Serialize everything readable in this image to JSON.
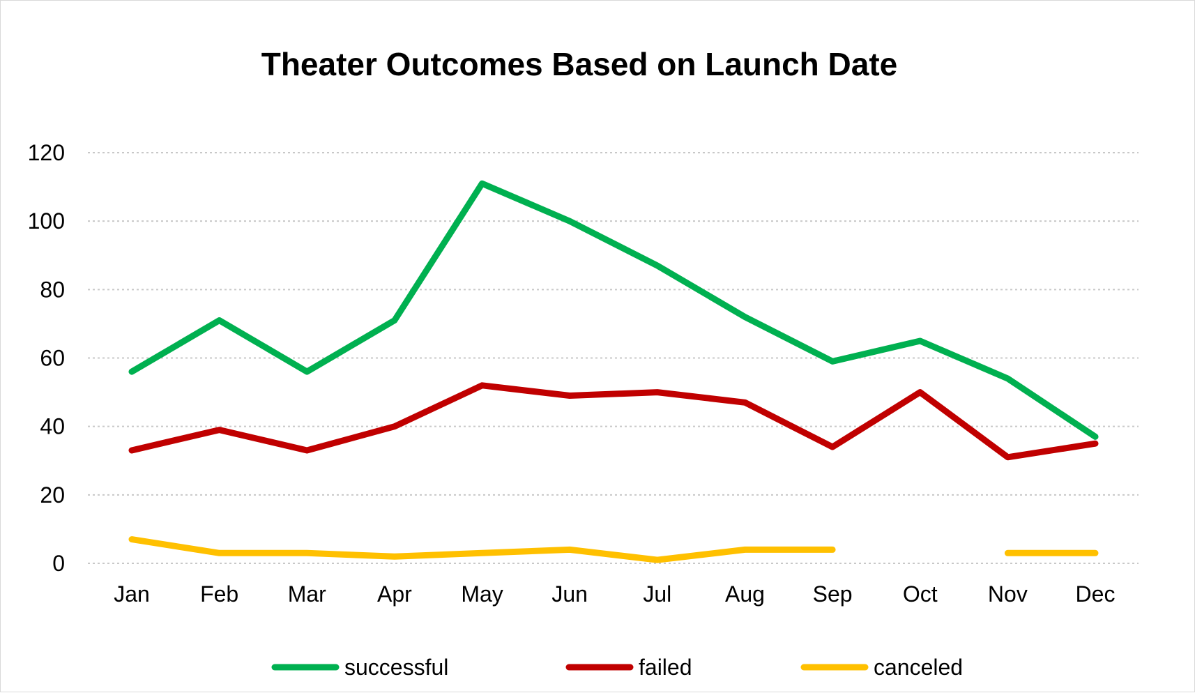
{
  "chart_data": {
    "type": "line",
    "title": "Theater Outcomes Based on Launch Date",
    "xlabel": "",
    "ylabel": "",
    "categories": [
      "Jan",
      "Feb",
      "Mar",
      "Apr",
      "May",
      "Jun",
      "Jul",
      "Aug",
      "Sep",
      "Oct",
      "Nov",
      "Dec"
    ],
    "ylim": [
      0,
      120
    ],
    "yticks": [
      0,
      20,
      40,
      60,
      80,
      100,
      120
    ],
    "grid": true,
    "legend_position": "bottom",
    "series": [
      {
        "name": "successful",
        "color": "#00b050",
        "values": [
          56,
          71,
          56,
          71,
          111,
          100,
          87,
          72,
          59,
          65,
          54,
          37
        ]
      },
      {
        "name": "failed",
        "color": "#c00000",
        "values": [
          33,
          39,
          33,
          40,
          52,
          49,
          50,
          47,
          34,
          50,
          31,
          35
        ]
      },
      {
        "name": "canceled",
        "color": "#ffc000",
        "values": [
          7,
          3,
          3,
          2,
          3,
          4,
          1,
          4,
          4,
          null,
          3,
          3
        ]
      }
    ]
  }
}
